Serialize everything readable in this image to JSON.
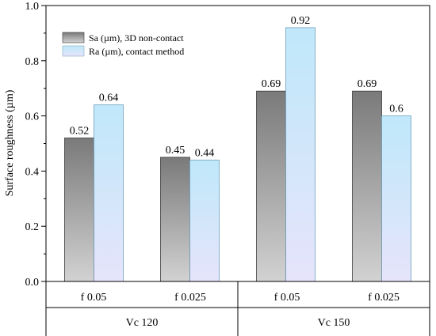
{
  "chart_data": {
    "type": "bar",
    "title": "",
    "xlabel": "",
    "ylabel": "Surface roughness (µm)",
    "ylim": [
      0,
      1.0
    ],
    "yticks": [
      "0.0",
      "0.2",
      "0.4",
      "0.6",
      "0.8",
      "1.0"
    ],
    "categories": [
      "f 0.05",
      "f 0.025",
      "f 0.05",
      "f 0.025"
    ],
    "groups": [
      {
        "label": "Vc 120",
        "categories": [
          0,
          1
        ]
      },
      {
        "label": "Vc 150",
        "categories": [
          2,
          3
        ]
      }
    ],
    "series": [
      {
        "name": "Sa (µm), 3D non-contact",
        "values": [
          0.52,
          0.45,
          0.69,
          0.69
        ],
        "labels": [
          "0.52",
          "0.45",
          "0.69",
          "0.69"
        ],
        "color": "#8c8c8c"
      },
      {
        "name": "Ra (µm), contact method",
        "values": [
          0.64,
          0.44,
          0.92,
          0.6
        ],
        "labels": [
          "0.64",
          "0.44",
          "0.92",
          "0.6"
        ],
        "color": "#bfe8f7"
      }
    ],
    "legend_position": "top-left",
    "grid": false
  }
}
